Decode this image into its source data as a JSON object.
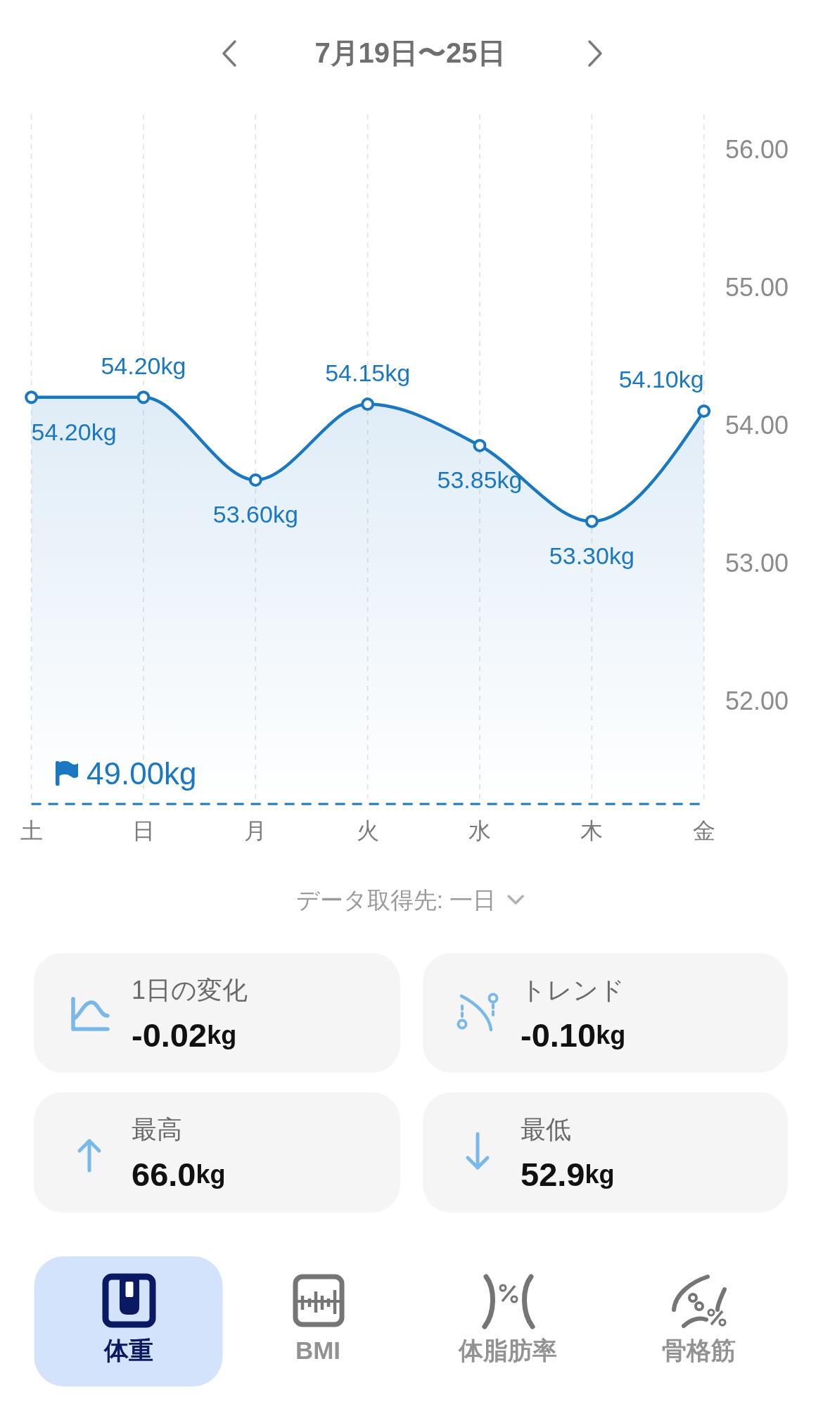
{
  "chart_data": {
    "type": "area",
    "title": "7月19日〜25日",
    "categories": [
      "土",
      "日",
      "月",
      "火",
      "水",
      "木",
      "金"
    ],
    "values": [
      54.2,
      54.2,
      53.6,
      54.15,
      53.85,
      53.3,
      54.1
    ],
    "value_labels": [
      "54.20kg",
      "54.20kg",
      "53.60kg",
      "54.15kg",
      "53.85kg",
      "53.30kg",
      "54.10kg"
    ],
    "color": "#1a78c2",
    "ylim": [
      51.25,
      56.25
    ],
    "yticks": [
      {
        "value": 56,
        "label": "56.00"
      },
      {
        "value": 55,
        "label": "55.00"
      },
      {
        "value": 54,
        "label": "54.00"
      },
      {
        "value": 53,
        "label": "53.00"
      },
      {
        "value": 52,
        "label": "52.00"
      }
    ],
    "grid": "x",
    "marker": "circle",
    "line_style": "solid",
    "annotations": [
      "49.00kg",
      "データ取得先: 一日",
      "1日の変化",
      "-0.02kg",
      "トレンド",
      "-0.10kg",
      "最高",
      "66.0kg",
      "最低",
      "52.9kg",
      "体重",
      "BMI",
      "体脂肪率",
      "骨格筋"
    ]
  }
}
